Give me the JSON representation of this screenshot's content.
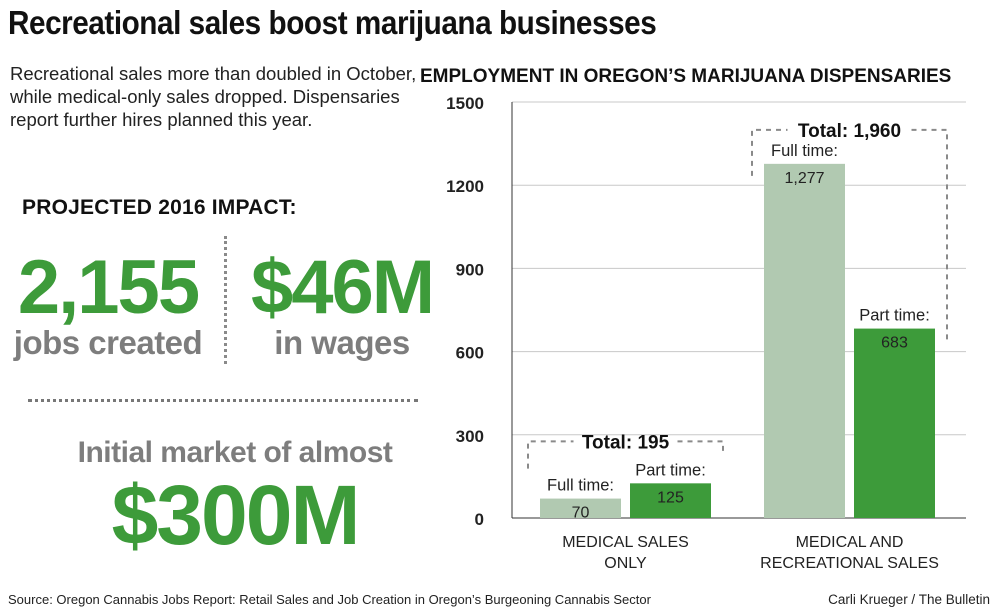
{
  "headline": "Recreational sales boost marijuana businesses",
  "intro": "Recreational sales more than doubled in October, while medical-only sales dropped. Dispensaries report further hires planned this year.",
  "impact": {
    "title": "PROJECTED 2016 IMPACT:",
    "jobs_value": "2,155",
    "jobs_label": "jobs created",
    "wages_value": "$46M",
    "wages_label": "in wages",
    "market_line": "Initial market of almost",
    "market_value": "$300M"
  },
  "colors": {
    "accent_green": "#3d9b3a",
    "light_green": "#b1c9b1",
    "gray_text": "#7d7d7d"
  },
  "source": "Source: Oregon Cannabis Jobs Report: Retail Sales and Job Creation in Oregon’s Burgeoning Cannabis Sector",
  "credit": "Carli Krueger / The Bulletin",
  "chart_data": {
    "type": "bar",
    "title": "EMPLOYMENT IN OREGON’S MARIJUANA DISPENSARIES",
    "categories": [
      "MEDICAL SALES ONLY",
      "MEDICAL AND RECREATIONAL SALES"
    ],
    "category_lines": [
      [
        "MEDICAL SALES",
        "ONLY"
      ],
      [
        "MEDICAL AND",
        "RECREATIONAL SALES"
      ]
    ],
    "series": [
      {
        "name": "Full time:",
        "values": [
          70,
          1277
        ],
        "value_labels": [
          "70",
          "1,277"
        ],
        "color": "#b1c9b1"
      },
      {
        "name": "Part time:",
        "values": [
          125,
          683
        ],
        "value_labels": [
          "125",
          "683"
        ],
        "color": "#3d9b3a"
      }
    ],
    "totals": [
      "Total: 195",
      "Total: 1,960"
    ],
    "yticks": [
      0,
      300,
      600,
      900,
      1200,
      1500
    ],
    "ylim": [
      0,
      1500
    ],
    "grid": true,
    "xlabel": "",
    "ylabel": ""
  }
}
